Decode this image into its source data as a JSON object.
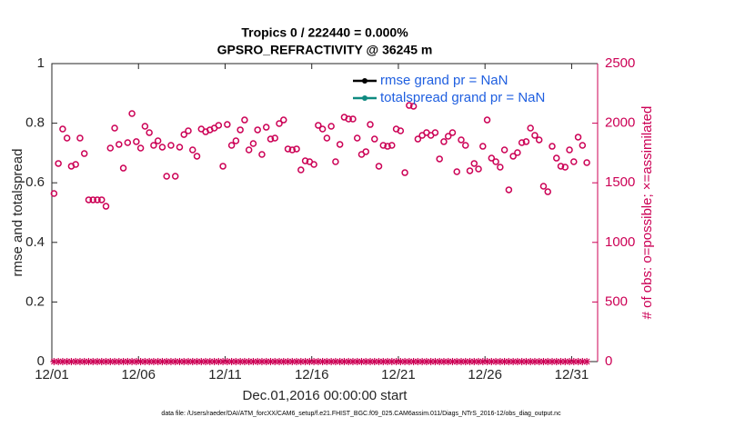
{
  "chart_data": {
    "type": "scatter",
    "title": [
      "Tropics 0 / 222440 = 0.000%",
      "GPSRO_REFRACTIVITY @ 36245 m"
    ],
    "xlabel": "Dec.01,2016 00:00:00 start",
    "ylabel": "rmse and totalspread",
    "y2label": "# of obs: o=possible; ×=assimilated",
    "footnote": "data file: /Users/raeder/DAI/ATM_forcXX/CAM6_setup/f.e21.FHIST_BGC.f09_025.CAM6assim.011/Diags_NTrS_2016-12/obs_diag_output.nc",
    "legend": [
      {
        "name": "rmse grand pr = NaN",
        "color": "#000000"
      },
      {
        "name": "totalspread grand pr = NaN",
        "color": "#0f8a80"
      }
    ],
    "legend_position": "upper right",
    "xlim": [
      0,
      31.5
    ],
    "xticks": [
      {
        "value": 0,
        "label": "12/01"
      },
      {
        "value": 5,
        "label": "12/06"
      },
      {
        "value": 10,
        "label": "12/11"
      },
      {
        "value": 15,
        "label": "12/16"
      },
      {
        "value": 20,
        "label": "12/21"
      },
      {
        "value": 25,
        "label": "12/26"
      },
      {
        "value": 30,
        "label": "12/31"
      }
    ],
    "ylim": [
      0,
      1
    ],
    "yticks": [
      0,
      0.2,
      0.4,
      0.6,
      0.8,
      1
    ],
    "y2lim": [
      0,
      2500
    ],
    "y2ticks": [
      0,
      500,
      1000,
      1500,
      2000,
      2500
    ],
    "y2color": "#cc0055",
    "x": [
      0.125,
      0.375,
      0.625,
      0.875,
      1.125,
      1.375,
      1.625,
      1.875,
      2.125,
      2.375,
      2.625,
      2.875,
      3.125,
      3.375,
      3.625,
      3.875,
      4.125,
      4.375,
      4.625,
      4.875,
      5.125,
      5.375,
      5.625,
      5.875,
      6.125,
      6.375,
      6.625,
      6.875,
      7.125,
      7.375,
      7.625,
      7.875,
      8.125,
      8.375,
      8.625,
      8.875,
      9.125,
      9.375,
      9.625,
      9.875,
      10.125,
      10.375,
      10.625,
      10.875,
      11.125,
      11.375,
      11.625,
      11.875,
      12.125,
      12.375,
      12.625,
      12.875,
      13.125,
      13.375,
      13.625,
      13.875,
      14.125,
      14.375,
      14.625,
      14.875,
      15.125,
      15.375,
      15.625,
      15.875,
      16.125,
      16.375,
      16.625,
      16.875,
      17.125,
      17.375,
      17.625,
      17.875,
      18.125,
      18.375,
      18.625,
      18.875,
      19.125,
      19.375,
      19.625,
      19.875,
      20.125,
      20.375,
      20.625,
      20.875,
      21.125,
      21.375,
      21.625,
      21.875,
      22.125,
      22.375,
      22.625,
      22.875,
      23.125,
      23.375,
      23.625,
      23.875,
      24.125,
      24.375,
      24.625,
      24.875,
      25.125,
      25.375,
      25.625,
      25.875,
      26.125,
      26.375,
      26.625,
      26.875,
      27.125,
      27.375,
      27.625,
      27.875,
      28.125,
      28.375,
      28.625,
      28.875,
      29.125,
      29.375,
      29.625,
      29.875,
      30.125,
      30.375,
      30.625,
      30.875
    ],
    "series": [
      {
        "name": "possible",
        "marker": "circle",
        "axis": "y2",
        "color": "#cc0055",
        "values": [
          1410,
          1662,
          1951,
          1875,
          1639,
          1654,
          1875,
          1745,
          1357,
          1357,
          1357,
          1357,
          1303,
          1791,
          1959,
          1822,
          1623,
          1837,
          2081,
          1845,
          1791,
          1974,
          1921,
          1814,
          1852,
          1799,
          1555,
          1814,
          1555,
          1799,
          1905,
          1936,
          1776,
          1723,
          1951,
          1928,
          1944,
          1959,
          1982,
          1639,
          1989,
          1814,
          1852,
          1944,
          2027,
          1776,
          1829,
          1944,
          1738,
          1966,
          1867,
          1875,
          1997,
          2027,
          1784,
          1776,
          1784,
          1608,
          1684,
          1677,
          1654,
          1982,
          1951,
          1875,
          1974,
          1677,
          1822,
          2050,
          2035,
          2035,
          1875,
          1738,
          1761,
          1989,
          1867,
          1639,
          1814,
          1806,
          1814,
          1951,
          1936,
          1585,
          2149,
          2142,
          1867,
          1898,
          1921,
          1898,
          1921,
          1700,
          1845,
          1890,
          1921,
          1593,
          1860,
          1814,
          1601,
          1662,
          1616,
          1806,
          2027,
          1707,
          1677,
          1631,
          1776,
          1441,
          1723,
          1753,
          1837,
          1845,
          1959,
          1898,
          1860,
          1471,
          1425,
          1806,
          1707,
          1639,
          1631,
          1776,
          1677,
          1883,
          1814,
          1669
        ]
      },
      {
        "name": "assimilated",
        "marker": "star",
        "axis": "y2",
        "color": "#cc0055",
        "values": [
          0,
          0,
          0,
          0,
          0,
          0,
          0,
          0,
          0,
          0,
          0,
          0,
          0,
          0,
          0,
          0,
          0,
          0,
          0,
          0,
          0,
          0,
          0,
          0,
          0,
          0,
          0,
          0,
          0,
          0,
          0,
          0,
          0,
          0,
          0,
          0,
          0,
          0,
          0,
          0,
          0,
          0,
          0,
          0,
          0,
          0,
          0,
          0,
          0,
          0,
          0,
          0,
          0,
          0,
          0,
          0,
          0,
          0,
          0,
          0,
          0,
          0,
          0,
          0,
          0,
          0,
          0,
          0,
          0,
          0,
          0,
          0,
          0,
          0,
          0,
          0,
          0,
          0,
          0,
          0,
          0,
          0,
          0,
          0,
          0,
          0,
          0,
          0,
          0,
          0,
          0,
          0,
          0,
          0,
          0,
          0,
          0,
          0,
          0,
          0,
          0,
          0,
          0,
          0,
          0,
          0,
          0,
          0,
          0,
          0,
          0,
          0,
          0,
          0,
          0,
          0,
          0,
          0,
          0,
          0,
          0,
          0,
          0,
          0
        ]
      }
    ]
  }
}
